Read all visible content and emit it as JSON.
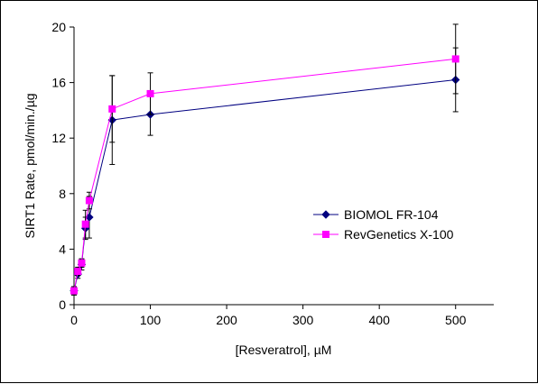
{
  "chart_data": {
    "type": "line",
    "title": "",
    "xlabel": "[Resveratrol], µM",
    "ylabel": "SIRT1 Rate, pmol/min./µg",
    "xlim": [
      0,
      550
    ],
    "ylim": [
      0,
      20
    ],
    "x_ticks": [
      "0",
      "100",
      "200",
      "300",
      "400",
      "500"
    ],
    "y_ticks": [
      "0",
      "4",
      "8",
      "12",
      "16",
      "20"
    ],
    "grid": false,
    "legend_position": "right-middle",
    "series": [
      {
        "name": "BIOMOL FR-104",
        "color": "#000080",
        "marker": "diamond",
        "x": [
          0,
          5,
          10,
          15,
          20,
          50,
          100,
          500
        ],
        "y": [
          1.0,
          2.2,
          2.9,
          5.5,
          6.3,
          13.3,
          13.7,
          16.2
        ],
        "err": [
          0.3,
          0.3,
          0.4,
          0.8,
          1.5,
          3.2,
          1.5,
          2.3
        ]
      },
      {
        "name": "RevGenetics X-100",
        "color": "#ff00ff",
        "marker": "square",
        "x": [
          0,
          5,
          10,
          15,
          20,
          50,
          100,
          500
        ],
        "y": [
          1.0,
          2.4,
          3.0,
          5.8,
          7.5,
          14.1,
          15.2,
          17.7
        ],
        "err": [
          0.3,
          0.3,
          0.3,
          1.0,
          0.6,
          2.4,
          1.5,
          2.5
        ]
      }
    ]
  }
}
